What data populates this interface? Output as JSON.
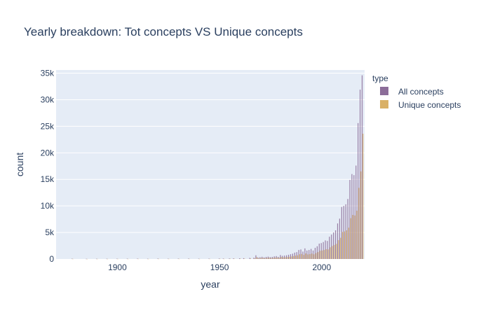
{
  "chart_data": {
    "type": "bar",
    "title": "Yearly breakdown: Tot concepts VS Unique concepts",
    "xlabel": "year",
    "ylabel": "count",
    "xlim": [
      1870,
      2021
    ],
    "ylim": [
      0,
      35600
    ],
    "x_ticks": [
      1900,
      1950,
      2000
    ],
    "y_ticks": [
      0,
      5000,
      10000,
      15000,
      20000,
      25000,
      30000,
      35000
    ],
    "y_tick_labels": [
      "0",
      "5k",
      "10k",
      "15k",
      "20k",
      "25k",
      "30k",
      "35k"
    ],
    "grid": true,
    "legend": {
      "title": "type",
      "placement": "right"
    },
    "colors": {
      "All concepts": "#8c6d99",
      "Unique concepts": "#d9b066",
      "plot_bg": "#e5ecf6"
    },
    "x": [
      1878,
      1885,
      1890,
      1895,
      1900,
      1905,
      1910,
      1915,
      1920,
      1925,
      1930,
      1935,
      1940,
      1945,
      1950,
      1952,
      1955,
      1957,
      1960,
      1962,
      1965,
      1967,
      1968,
      1969,
      1970,
      1971,
      1972,
      1973,
      1974,
      1975,
      1976,
      1977,
      1978,
      1979,
      1980,
      1981,
      1982,
      1983,
      1984,
      1985,
      1986,
      1987,
      1988,
      1989,
      1990,
      1991,
      1992,
      1993,
      1994,
      1995,
      1996,
      1997,
      1998,
      1999,
      2000,
      2001,
      2002,
      2003,
      2004,
      2005,
      2006,
      2007,
      2008,
      2009,
      2010,
      2011,
      2012,
      2013,
      2014,
      2015,
      2016,
      2017,
      2018,
      2019,
      2020
    ],
    "series": [
      {
        "name": "All concepts",
        "values": [
          60,
          40,
          50,
          50,
          60,
          60,
          70,
          50,
          80,
          60,
          70,
          80,
          60,
          70,
          90,
          80,
          100,
          110,
          130,
          150,
          200,
          250,
          700,
          300,
          350,
          420,
          300,
          400,
          450,
          350,
          400,
          500,
          550,
          400,
          750,
          600,
          650,
          700,
          800,
          900,
          1000,
          1200,
          1300,
          1700,
          1800,
          1400,
          2000,
          1600,
          1700,
          1900,
          1600,
          2100,
          2400,
          2900,
          3000,
          3200,
          3500,
          3400,
          4200,
          4600,
          5000,
          5400,
          6700,
          7600,
          9800,
          10000,
          10300,
          11300,
          14900,
          16000,
          15800,
          17600,
          25600,
          31900,
          34600
        ]
      },
      {
        "name": "Unique concepts",
        "values": [
          30,
          20,
          30,
          30,
          30,
          30,
          40,
          30,
          40,
          30,
          40,
          40,
          30,
          40,
          50,
          40,
          60,
          60,
          70,
          80,
          100,
          120,
          350,
          150,
          200,
          220,
          170,
          220,
          250,
          200,
          220,
          280,
          300,
          230,
          400,
          330,
          350,
          380,
          430,
          480,
          550,
          650,
          700,
          900,
          950,
          760,
          1050,
          870,
          920,
          1020,
          880,
          1120,
          1300,
          1550,
          1600,
          1700,
          1850,
          1800,
          2200,
          2450,
          2650,
          2850,
          3550,
          4000,
          5100,
          5200,
          5400,
          5900,
          7700,
          8300,
          8200,
          9100,
          13400,
          16500,
          23600
        ]
      }
    ]
  }
}
